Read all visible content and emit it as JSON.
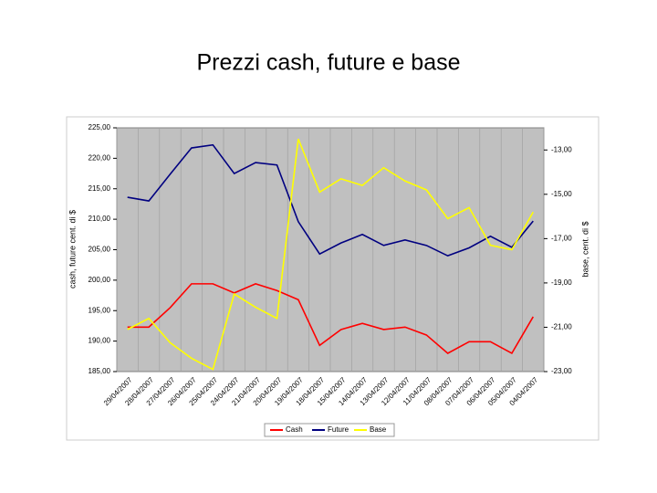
{
  "chart_data": {
    "type": "line",
    "title": "Prezzi cash, future e base",
    "y_label": "cash, future cent. di $",
    "y2_label": "base, cent. di $",
    "categories": [
      "29/04/2007",
      "28/04/2007",
      "27/04/2007",
      "26/04/2007",
      "25/04/2007",
      "24/04/2007",
      "21/04/2007",
      "20/04/2007",
      "19/04/2007",
      "18/04/2007",
      "15/04/2007",
      "14/04/2007",
      "13/04/2007",
      "12/04/2007",
      "11/04/2007",
      "08/04/2007",
      "07/04/2007",
      "06/04/2007",
      "05/04/2007",
      "04/04/2007"
    ],
    "series": [
      {
        "name": "Cash",
        "color": "#ff0000",
        "values": [
          192.3,
          192.3,
          195.5,
          199.4,
          199.4,
          197.9,
          199.4,
          198.3,
          196.8,
          189.3,
          191.9,
          192.9,
          191.9,
          192.3,
          191.0,
          188.0,
          189.9,
          189.9,
          188.0,
          194.0
        ]
      },
      {
        "name": "Future",
        "color": "#000080",
        "values": [
          213.6,
          213.0,
          217.4,
          221.7,
          222.2,
          217.5,
          219.3,
          218.9,
          209.6,
          204.3,
          206.1,
          207.5,
          205.7,
          206.6,
          205.7,
          204.0,
          205.3,
          207.2,
          205.4,
          209.7
        ]
      },
      {
        "name": "Base",
        "color": "#ffff00",
        "axis": "y2",
        "values": [
          -21.1,
          -20.6,
          -21.7,
          -22.4,
          -22.9,
          -19.5,
          -20.1,
          -20.6,
          -12.5,
          -14.9,
          -14.3,
          -14.6,
          -13.8,
          -14.4,
          -14.8,
          -16.1,
          -15.6,
          -17.3,
          -17.5,
          -15.8
        ]
      }
    ],
    "ylim": [
      185,
      225
    ],
    "yticks": [
      {
        "value": 185,
        "label": "185,00"
      },
      {
        "value": 190,
        "label": "190,00"
      },
      {
        "value": 195,
        "label": "195,00"
      },
      {
        "value": 200,
        "label": "200,00"
      },
      {
        "value": 205,
        "label": "205,00"
      },
      {
        "value": 210,
        "label": "210,00"
      },
      {
        "value": 215,
        "label": "215,00"
      },
      {
        "value": 220,
        "label": "220,00"
      },
      {
        "value": 225,
        "label": "225,00"
      }
    ],
    "y2lim": [
      -23,
      -12
    ],
    "y2ticks": [
      {
        "value": -23,
        "label": "-23,00"
      },
      {
        "value": -21,
        "label": "-21,00"
      },
      {
        "value": -19,
        "label": "-19,00"
      },
      {
        "value": -17,
        "label": "-17,00"
      },
      {
        "value": -15,
        "label": "-15,00"
      },
      {
        "value": -13,
        "label": "-13,00"
      }
    ],
    "legend": "bottom"
  }
}
